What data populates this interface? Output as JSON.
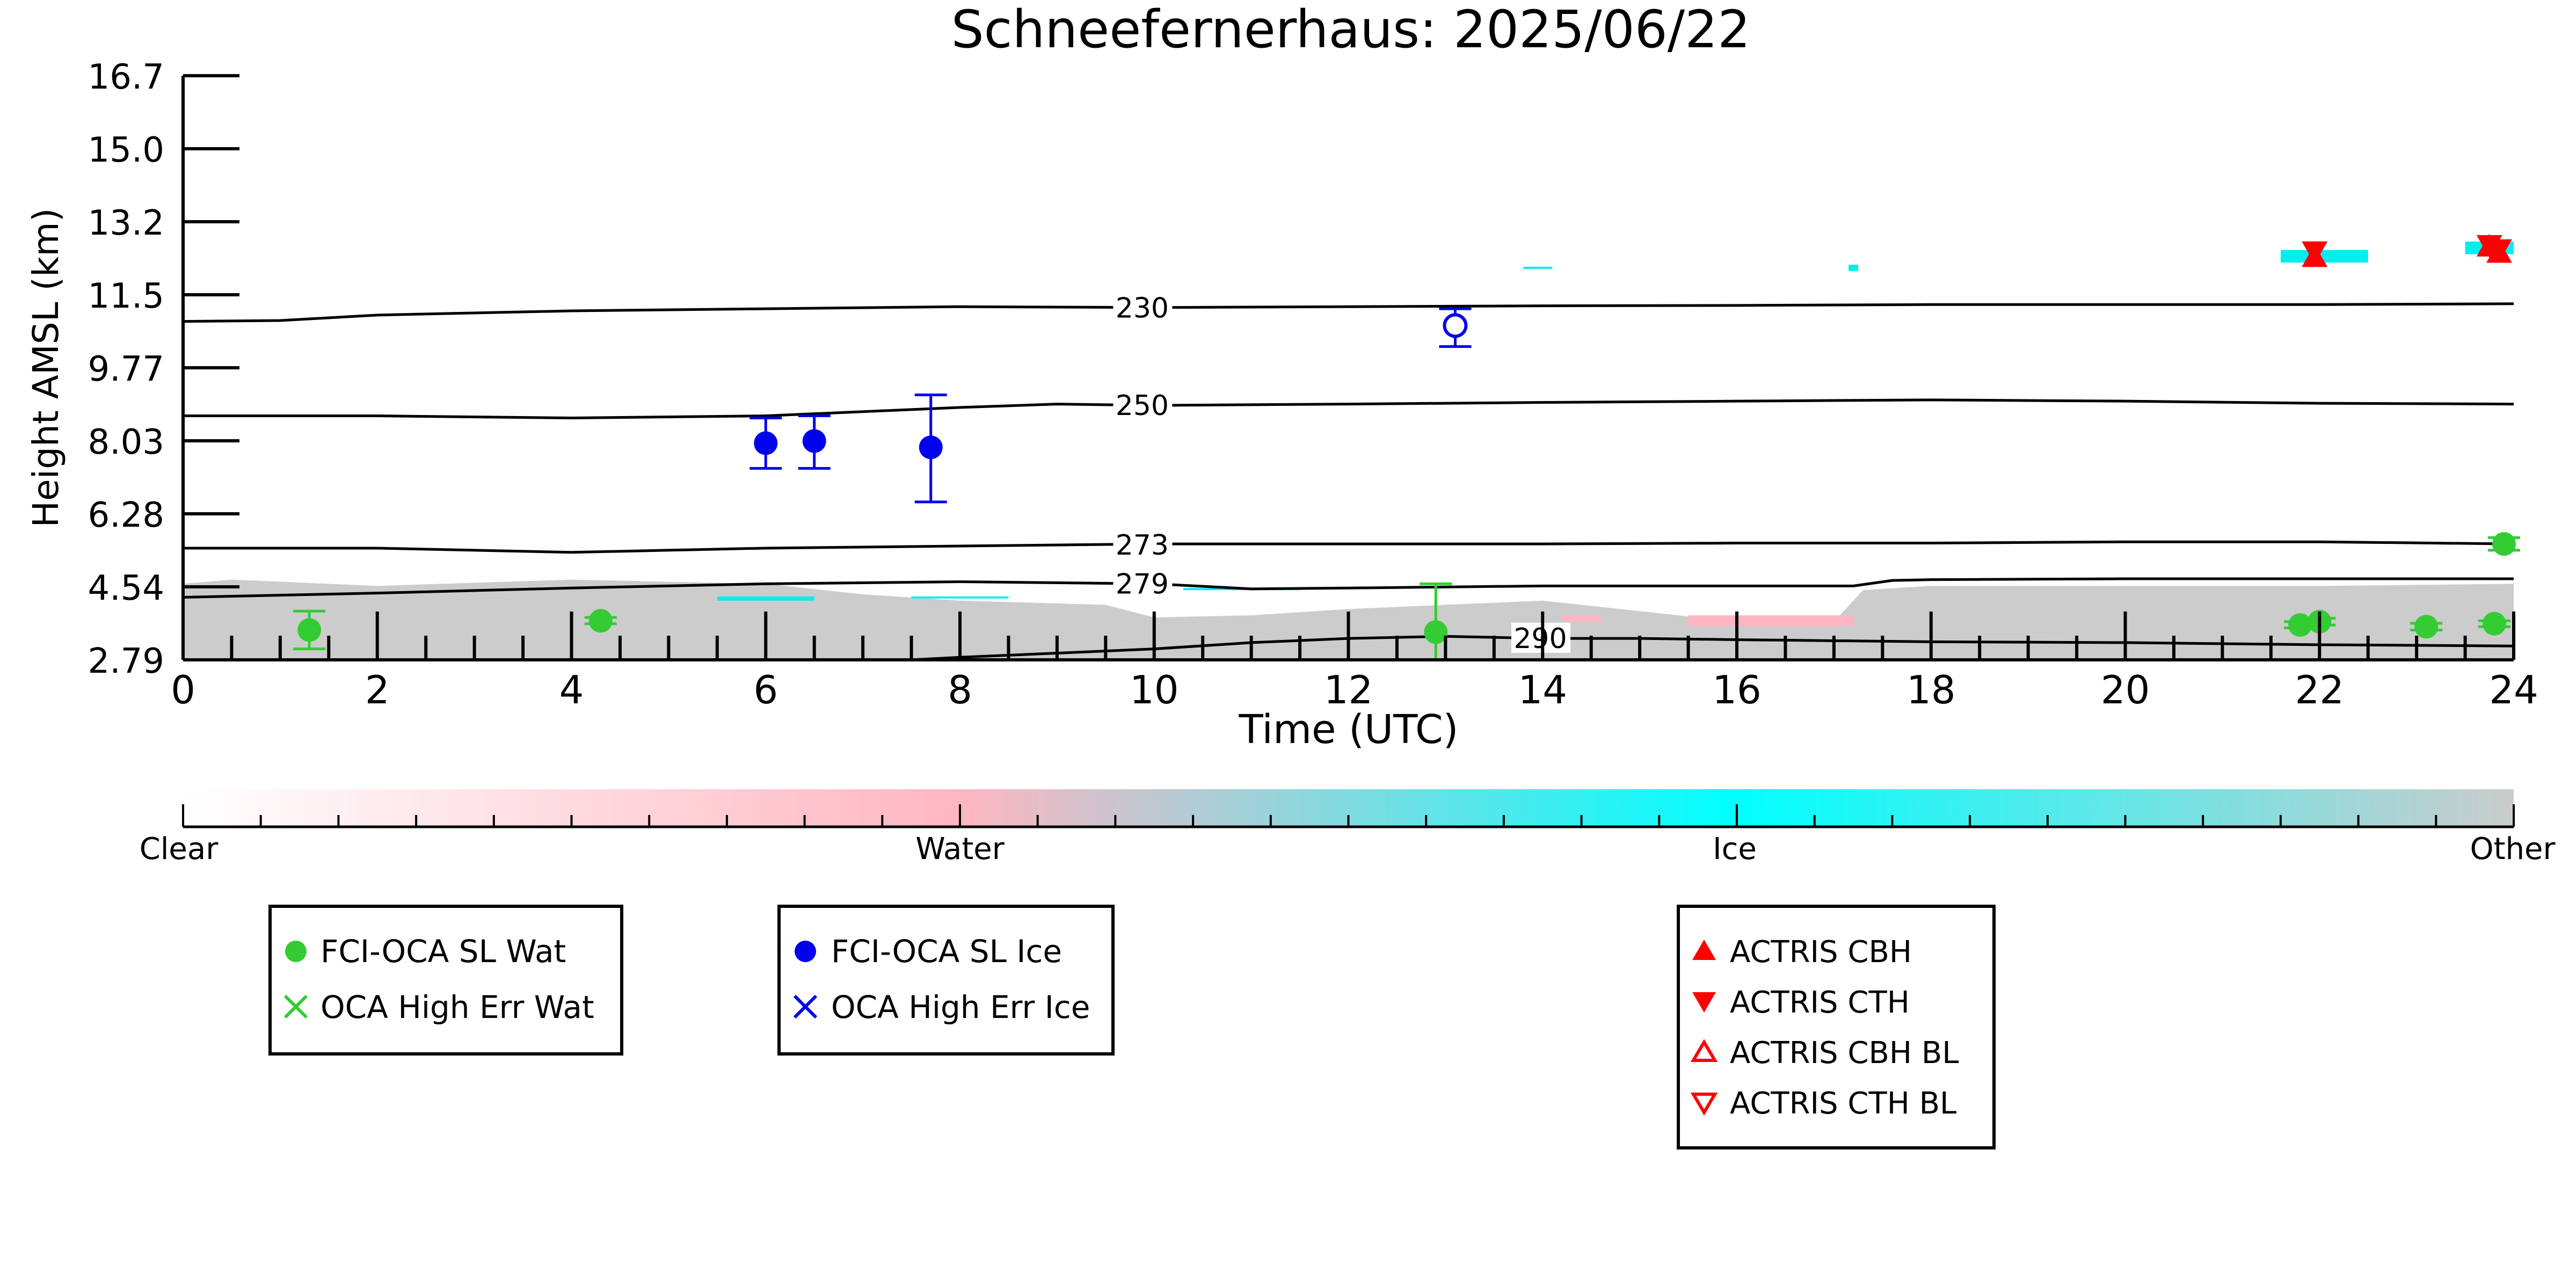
{
  "chart_data": {
    "type": "scatter",
    "title": "Schneefernerhaus: 2025/06/22",
    "xlabel": "Time (UTC)",
    "ylabel": "Height AMSL (km)",
    "xlim": [
      0,
      24
    ],
    "ylim": [
      2.79,
      16.7
    ],
    "x_ticks": [
      "0",
      "2",
      "4",
      "6",
      "8",
      "10",
      "12",
      "14",
      "16",
      "18",
      "20",
      "22",
      "24"
    ],
    "y_ticks": [
      "2.79",
      "4.54",
      "6.28",
      "8.03",
      "9.77",
      "11.5",
      "13.2",
      "15.0",
      "16.7"
    ],
    "grid": false,
    "contours": [
      {
        "label": "230",
        "label_x": 9.6,
        "points": [
          [
            0,
            10.85
          ],
          [
            1,
            10.87
          ],
          [
            2,
            11.0
          ],
          [
            4,
            11.1
          ],
          [
            6,
            11.15
          ],
          [
            8,
            11.2
          ],
          [
            10,
            11.18
          ],
          [
            12,
            11.2
          ],
          [
            14,
            11.22
          ],
          [
            16,
            11.23
          ],
          [
            18,
            11.25
          ],
          [
            20,
            11.25
          ],
          [
            22,
            11.25
          ],
          [
            24,
            11.27
          ]
        ]
      },
      {
        "label": "250",
        "label_x": 9.6,
        "points": [
          [
            0,
            8.6
          ],
          [
            2,
            8.6
          ],
          [
            4,
            8.55
          ],
          [
            6,
            8.6
          ],
          [
            8,
            8.8
          ],
          [
            9,
            8.88
          ],
          [
            10,
            8.85
          ],
          [
            12,
            8.88
          ],
          [
            14,
            8.92
          ],
          [
            16,
            8.95
          ],
          [
            18,
            8.98
          ],
          [
            20,
            8.95
          ],
          [
            22,
            8.9
          ],
          [
            24,
            8.88
          ]
        ]
      },
      {
        "label": "273",
        "label_x": 9.6,
        "points": [
          [
            0,
            5.45
          ],
          [
            2,
            5.45
          ],
          [
            4,
            5.35
          ],
          [
            6,
            5.45
          ],
          [
            8,
            5.5
          ],
          [
            10,
            5.55
          ],
          [
            12,
            5.55
          ],
          [
            14,
            5.55
          ],
          [
            16,
            5.57
          ],
          [
            18,
            5.57
          ],
          [
            20,
            5.6
          ],
          [
            22,
            5.6
          ],
          [
            24,
            5.55
          ]
        ]
      },
      {
        "label": "279",
        "label_x": 9.6,
        "points": [
          [
            0,
            4.28
          ],
          [
            2,
            4.38
          ],
          [
            4,
            4.5
          ],
          [
            6,
            4.6
          ],
          [
            8,
            4.65
          ],
          [
            10,
            4.6
          ],
          [
            11,
            4.48
          ],
          [
            12,
            4.5
          ],
          [
            14,
            4.55
          ],
          [
            16,
            4.55
          ],
          [
            17.2,
            4.55
          ],
          [
            17.6,
            4.68
          ],
          [
            18,
            4.7
          ],
          [
            20,
            4.72
          ],
          [
            22,
            4.72
          ],
          [
            24,
            4.72
          ]
        ]
      },
      {
        "label": "290",
        "label_x": 13.7,
        "points": [
          [
            7.5,
            2.79
          ],
          [
            8,
            2.85
          ],
          [
            9,
            2.95
          ],
          [
            10,
            3.05
          ],
          [
            11,
            3.2
          ],
          [
            12,
            3.3
          ],
          [
            13,
            3.35
          ],
          [
            14,
            3.3
          ],
          [
            15,
            3.3
          ],
          [
            16,
            3.27
          ],
          [
            18,
            3.22
          ],
          [
            20,
            3.2
          ],
          [
            22,
            3.15
          ],
          [
            24,
            3.12
          ]
        ]
      }
    ],
    "series": [
      {
        "name": "FCI-OCA SL Wat",
        "color": "#33cc33",
        "marker": "filled-circle",
        "points": [
          [
            1.3,
            3.5,
            3.05,
            3.95
          ],
          [
            4.3,
            3.72,
            3.65,
            3.8
          ],
          [
            12.9,
            3.45,
            2.79,
            4.6
          ],
          [
            21.8,
            3.62,
            3.55,
            3.7
          ],
          [
            22.0,
            3.7,
            3.62,
            3.78
          ],
          [
            23.1,
            3.58,
            3.5,
            3.66
          ],
          [
            23.8,
            3.65,
            3.58,
            3.72
          ],
          [
            23.9,
            5.55,
            5.4,
            5.7
          ]
        ]
      },
      {
        "name": "OCA High Err Wat",
        "color": "#33cc33",
        "marker": "x",
        "points": []
      },
      {
        "name": "FCI-OCA SL Ice",
        "color": "#0000ee",
        "marker": "filled-circle",
        "points": [
          [
            6.0,
            7.95,
            7.35,
            8.55
          ],
          [
            6.5,
            8.0,
            7.35,
            8.6
          ],
          [
            7.7,
            7.85,
            6.55,
            9.1
          ]
        ]
      },
      {
        "name": "OCA High Err Ice",
        "color": "#0000ee",
        "marker": "x",
        "points": []
      },
      {
        "name": "FCI-OCA SL Ice (open)",
        "color": "#0000ee",
        "marker": "open-circle",
        "points": [
          [
            13.1,
            10.75,
            10.25,
            11.15
          ]
        ]
      },
      {
        "name": "ACTRIS CBH",
        "color": "#ff0000",
        "marker": "triangle-up",
        "points": [
          [
            21.95,
            12.35
          ],
          [
            23.75,
            12.6
          ],
          [
            23.85,
            12.45
          ]
        ]
      },
      {
        "name": "ACTRIS CTH",
        "color": "#ff0000",
        "marker": "triangle-down",
        "points": [
          [
            21.95,
            12.55
          ],
          [
            23.75,
            12.7
          ],
          [
            23.85,
            12.6
          ]
        ]
      },
      {
        "name": "ACTRIS CBH BL",
        "color": "#ff0000",
        "marker": "open-triangle-up",
        "points": []
      },
      {
        "name": "ACTRIS CTH BL",
        "color": "#ff0000",
        "marker": "open-triangle-down",
        "points": []
      }
    ],
    "classification_colorbar": {
      "labels": [
        "Clear",
        "Water",
        "Ice",
        "Other"
      ],
      "colors": [
        "#ffffff",
        "#ffb6c1",
        "#00ffff",
        "#cccccc"
      ]
    },
    "background_classes": {
      "other": {
        "color": "#cccccc",
        "segments": [
          [
            0,
            4.6
          ],
          [
            0.5,
            4.7
          ],
          [
            2,
            4.55
          ],
          [
            4,
            4.7
          ],
          [
            6,
            4.6
          ],
          [
            7,
            4.35
          ],
          [
            8,
            4.2
          ],
          [
            9.5,
            4.1
          ],
          [
            10,
            3.8
          ],
          [
            11,
            3.85
          ],
          [
            12,
            4.0
          ],
          [
            13,
            4.1
          ],
          [
            14,
            4.2
          ],
          [
            15,
            3.95
          ],
          [
            16,
            3.7
          ],
          [
            17,
            3.7
          ],
          [
            17.3,
            4.45
          ],
          [
            18,
            4.55
          ],
          [
            20,
            4.55
          ],
          [
            22,
            4.55
          ],
          [
            24,
            4.6
          ]
        ]
      },
      "ice_patches": [
        [
          5.5,
          4.2,
          6.5,
          4.3
        ],
        [
          7.5,
          4.25,
          8.5,
          4.3
        ],
        [
          10.3,
          4.45,
          11.5,
          4.5
        ],
        [
          13.8,
          12.1,
          14.1,
          12.15
        ],
        [
          17.15,
          12.05,
          17.25,
          12.2
        ],
        [
          21.6,
          12.25,
          22.5,
          12.55
        ],
        [
          23.5,
          12.45,
          24,
          12.75
        ]
      ],
      "water_patches": [
        [
          15.5,
          3.6,
          17.2,
          3.85
        ],
        [
          14.2,
          3.7,
          14.6,
          3.85
        ]
      ]
    },
    "legends": [
      {
        "entries": [
          {
            "label": "FCI-OCA SL Wat",
            "color": "#33cc33",
            "marker": "filled-circle"
          },
          {
            "label": "OCA High Err Wat",
            "color": "#33cc33",
            "marker": "x"
          }
        ]
      },
      {
        "entries": [
          {
            "label": "FCI-OCA SL Ice",
            "color": "#0000ee",
            "marker": "filled-circle"
          },
          {
            "label": "OCA High Err Ice",
            "color": "#0000ee",
            "marker": "x"
          }
        ]
      },
      {
        "entries": [
          {
            "label": "ACTRIS CBH",
            "color": "#ff0000",
            "marker": "triangle-up"
          },
          {
            "label": "ACTRIS CTH",
            "color": "#ff0000",
            "marker": "triangle-down"
          },
          {
            "label": "ACTRIS CBH BL",
            "color": "#ff0000",
            "marker": "open-triangle-up"
          },
          {
            "label": "ACTRIS CTH BL",
            "color": "#ff0000",
            "marker": "open-triangle-down"
          }
        ]
      }
    ]
  }
}
